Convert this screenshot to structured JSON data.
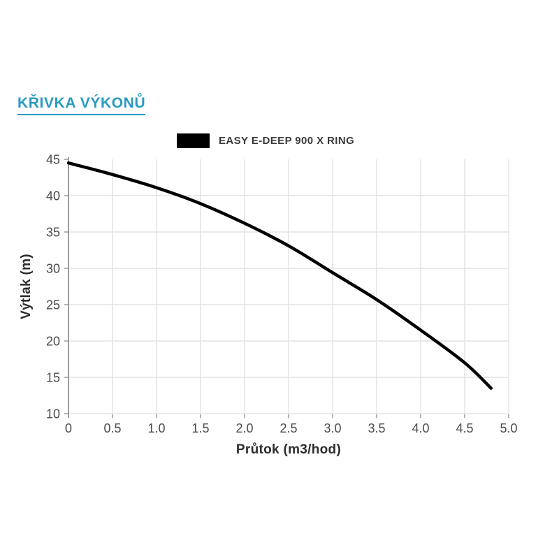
{
  "page": {
    "title": "KŘIVKA VÝKONŮ",
    "accent_color": "#2a9abf",
    "background": "#ffffff"
  },
  "legend": {
    "label": "EASY E-DEEP 900 X RING",
    "swatch_color": "#000000",
    "position": "top-center"
  },
  "chart_data": {
    "type": "line",
    "title": "",
    "xlabel": "Průtok (m3/hod)",
    "ylabel": "Výtlak (m)",
    "xlim": [
      0,
      5
    ],
    "ylim": [
      10,
      45
    ],
    "grid": true,
    "legend_position": "top-center",
    "x_ticks": {
      "values": [
        0,
        0.5,
        1.0,
        1.5,
        2.0,
        2.5,
        3.0,
        3.5,
        4.0,
        4.5,
        5.0
      ],
      "labels": [
        "0",
        "0.5",
        "1.0",
        "1.5",
        "2.0",
        "2.5",
        "3.0",
        "3.5",
        "4.0",
        "4.5",
        "5.0"
      ]
    },
    "y_ticks": {
      "values": [
        10,
        15,
        20,
        25,
        30,
        35,
        40,
        45
      ],
      "labels": [
        "10",
        "15",
        "20",
        "25",
        "30",
        "35",
        "40",
        "45"
      ]
    },
    "series": [
      {
        "name": "EASY E-DEEP 900 X RING",
        "color": "#000000",
        "x": [
          0,
          0.5,
          1.0,
          1.5,
          2.0,
          2.5,
          3.0,
          3.5,
          4.0,
          4.5,
          4.8
        ],
        "y": [
          44.5,
          42.9,
          41.1,
          38.9,
          36.2,
          33.1,
          29.4,
          25.7,
          21.5,
          17.0,
          13.5
        ]
      }
    ],
    "colors": {
      "grid": "#e3e3e3",
      "axis": "#9b9b9b",
      "tick_label": "#4a4a4a",
      "axis_label": "#2d2d2d"
    }
  }
}
